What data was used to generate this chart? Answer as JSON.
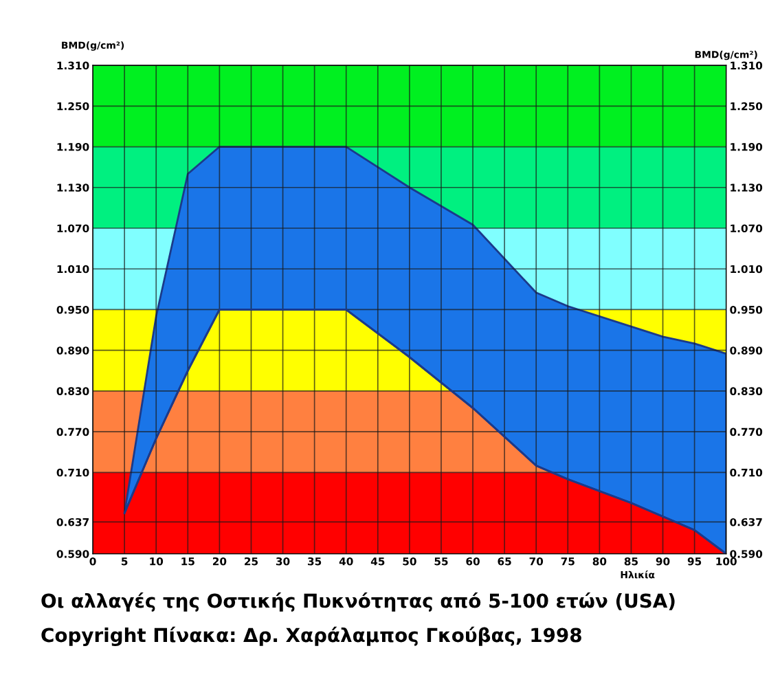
{
  "chart_data": {
    "type": "area",
    "xlabel": "Ηλικία",
    "ylabel": "BMD(g/cm²)",
    "y2label": "BMD(g/cm²)",
    "x": [
      5,
      10,
      15,
      20,
      40,
      50,
      60,
      70,
      75,
      85,
      90,
      95,
      100
    ],
    "series": [
      {
        "type": "line",
        "color": "#1b3a8a",
        "values": [
          0.65,
          0.76,
          0.86,
          0.95,
          0.95,
          0.88,
          0.805,
          0.72,
          0.7,
          0.665,
          0.645,
          0.625,
          0.59
        ]
      },
      {
        "color": "#1a75e8",
        "values": [
          0.65,
          0.94,
          1.15,
          1.19,
          1.19,
          1.13,
          1.075,
          0.975,
          0.955,
          0.925,
          0.91,
          0.9,
          0.885
        ]
      }
    ],
    "bands": [
      {
        "axis": "y",
        "from": 0.59,
        "to": 0.71,
        "color": "#ff0000"
      },
      {
        "axis": "y",
        "from": 0.71,
        "to": 0.83,
        "color": "#ff8040"
      },
      {
        "axis": "y",
        "from": 0.83,
        "to": 0.95,
        "color": "#ffff00"
      },
      {
        "axis": "y",
        "from": 0.95,
        "to": 1.07,
        "color": "#80ffff"
      },
      {
        "axis": "y",
        "from": 1.07,
        "to": 1.19,
        "color": "#00f080"
      },
      {
        "axis": "y",
        "from": 1.19,
        "to": 1.31,
        "color": "#00f020"
      }
    ],
    "xlim": [
      0,
      100
    ],
    "xticks": [
      0,
      5,
      10,
      15,
      20,
      25,
      30,
      35,
      40,
      45,
      50,
      55,
      60,
      65,
      70,
      75,
      80,
      85,
      90,
      95,
      100
    ],
    "ylim": [
      0.59,
      1.31
    ],
    "yticks": [
      {
        "value": 0.59,
        "label": "0.590"
      },
      {
        "value": 0.637,
        "label": "0.637"
      },
      {
        "value": 0.71,
        "label": "0.710"
      },
      {
        "value": 0.77,
        "label": "0.770"
      },
      {
        "value": 0.83,
        "label": "0.830"
      },
      {
        "value": 0.89,
        "label": "0.890"
      },
      {
        "value": 0.95,
        "label": "0.950"
      },
      {
        "value": 1.01,
        "label": "1.010"
      },
      {
        "value": 1.07,
        "label": "1.070"
      },
      {
        "value": 1.13,
        "label": "1.130"
      },
      {
        "value": 1.19,
        "label": "1.190"
      },
      {
        "value": 1.25,
        "label": "1.250"
      },
      {
        "value": 1.31,
        "label": "1.310"
      }
    ],
    "y2lim": [
      0.59,
      1.31
    ],
    "y2ticks": [
      {
        "value": 0.59,
        "label": "0.590"
      },
      {
        "value": 0.637,
        "label": "0.637"
      },
      {
        "value": 0.71,
        "label": "0.710"
      },
      {
        "value": 0.77,
        "label": "0.770"
      },
      {
        "value": 0.83,
        "label": "0.830"
      },
      {
        "value": 0.89,
        "label": "0.890"
      },
      {
        "value": 0.95,
        "label": "0.950"
      },
      {
        "value": 1.01,
        "label": "1.010"
      },
      {
        "value": 1.07,
        "label": "1.070"
      },
      {
        "value": 1.13,
        "label": "1.130"
      },
      {
        "value": 1.19,
        "label": "1.190"
      },
      {
        "value": 1.25,
        "label": "1.250"
      },
      {
        "value": 1.31,
        "label": "1.310"
      }
    ],
    "grid": true,
    "annotations": [
      "Οι αλλαγές της Οστικής Πυκνότητας από 5-100 ετών (USA)",
      "Copyright Πίνακα: Δρ. Χαράλαμπος Γκούβας, 1998"
    ]
  }
}
